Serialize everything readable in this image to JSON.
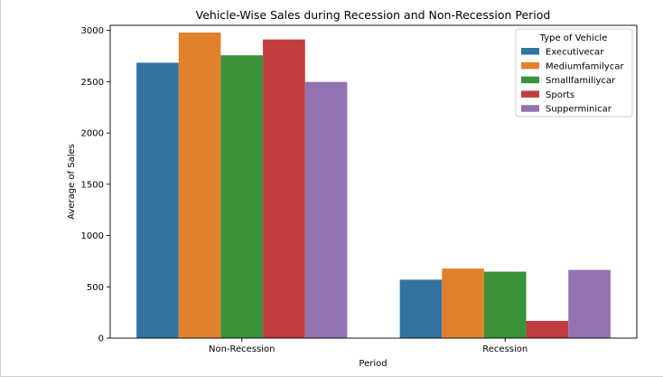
{
  "chart_data": {
    "type": "bar",
    "title": "Vehicle-Wise Sales during Recession and Non-Recession Period",
    "xlabel": "Period",
    "ylabel": "Average of Sales",
    "categories": [
      "Non-Recession",
      "Recession"
    ],
    "ylim": [
      0,
      3050
    ],
    "yticks": [
      0,
      500,
      1000,
      1500,
      2000,
      2500,
      3000
    ],
    "grid": false,
    "legend": {
      "title": "Type of Vehicle",
      "placement": "top-right"
    },
    "series": [
      {
        "name": "Executivecar",
        "color": "#3274a1",
        "values": [
          2685,
          570
        ]
      },
      {
        "name": "Mediumfamilycar",
        "color": "#e1812c",
        "values": [
          2980,
          678
        ]
      },
      {
        "name": "Smallfamiliycar",
        "color": "#3a923a",
        "values": [
          2758,
          648
        ]
      },
      {
        "name": "Sports",
        "color": "#c03d3e",
        "values": [
          2912,
          168
        ]
      },
      {
        "name": "Supperminicar",
        "color": "#9372b2",
        "values": [
          2498,
          665
        ]
      }
    ]
  }
}
